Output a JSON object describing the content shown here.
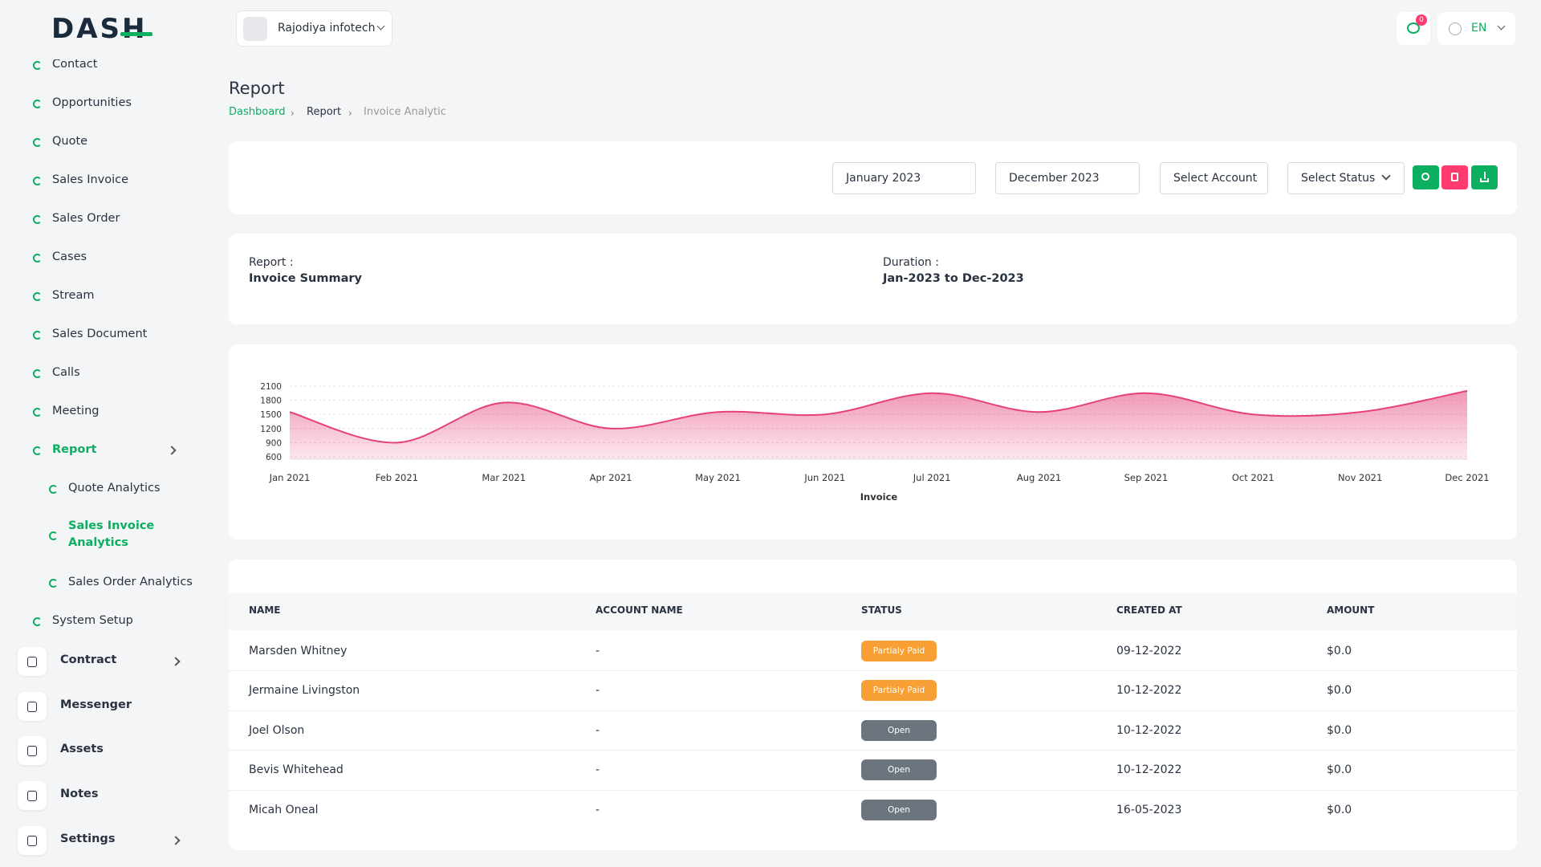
{
  "logo": "DASH",
  "header": {
    "company": "Rajodiya infotech",
    "notifications": 0,
    "language": "EN"
  },
  "sidebar": {
    "items": [
      "Contact",
      "Opportunities",
      "Quote",
      "Sales Invoice",
      "Sales Order",
      "Cases",
      "Stream",
      "Sales Document",
      "Calls",
      "Meeting",
      "Report"
    ],
    "report_submenu": [
      "Quote Analytics",
      "Sales Invoice Analytics",
      "Sales Order Analytics"
    ],
    "after": [
      "System Setup"
    ],
    "modules": [
      "Contract",
      "Messenger",
      "Assets",
      "Notes",
      "Settings"
    ]
  },
  "page": {
    "title": "Report",
    "breadcrumb": [
      "Dashboard",
      "Report",
      "Invoice Analytic"
    ]
  },
  "filters": {
    "start": "January 2023",
    "end": "December 2023",
    "account": "Select Account",
    "status": "Select Status"
  },
  "summary": {
    "report_label": "Report :",
    "report_value": "Invoice Summary",
    "duration_label": "Duration :",
    "duration_value": "Jan-2023 to Dec-2023"
  },
  "chart_data": {
    "type": "area",
    "x_label": "Invoice",
    "categories": [
      "Jan 2021",
      "Feb 2021",
      "Mar 2021",
      "Apr 2021",
      "May 2021",
      "Jun 2021",
      "Jul 2021",
      "Aug 2021",
      "Sep 2021",
      "Oct 2021",
      "Nov 2021",
      "Dec 2021"
    ],
    "values": [
      1550,
      900,
      1750,
      1200,
      1550,
      1500,
      1950,
      1550,
      1950,
      1500,
      1550,
      2000
    ],
    "color": "#e5417a",
    "ylim": [
      600,
      2100
    ],
    "yticks": [
      600,
      900,
      1200,
      1500,
      1800,
      2100
    ],
    "grid": true
  },
  "table": {
    "columns": [
      "NAME",
      "ACCOUNT NAME",
      "STATUS",
      "CREATED AT",
      "AMOUNT"
    ],
    "rows": [
      [
        "Marsden Whitney",
        "-",
        "Partialy Paid",
        "09-12-2022",
        "$0.0"
      ],
      [
        "Jermaine Livingston",
        "-",
        "Partialy Paid",
        "10-12-2022",
        "$0.0"
      ],
      [
        "Joel Olson",
        "-",
        "Open",
        "10-12-2022",
        "$0.0"
      ],
      [
        "Bevis Whitehead",
        "-",
        "Open",
        "10-12-2022",
        "$0.0"
      ],
      [
        "Micah Oneal",
        "-",
        "Open",
        "16-05-2023",
        "$0.0"
      ]
    ]
  }
}
